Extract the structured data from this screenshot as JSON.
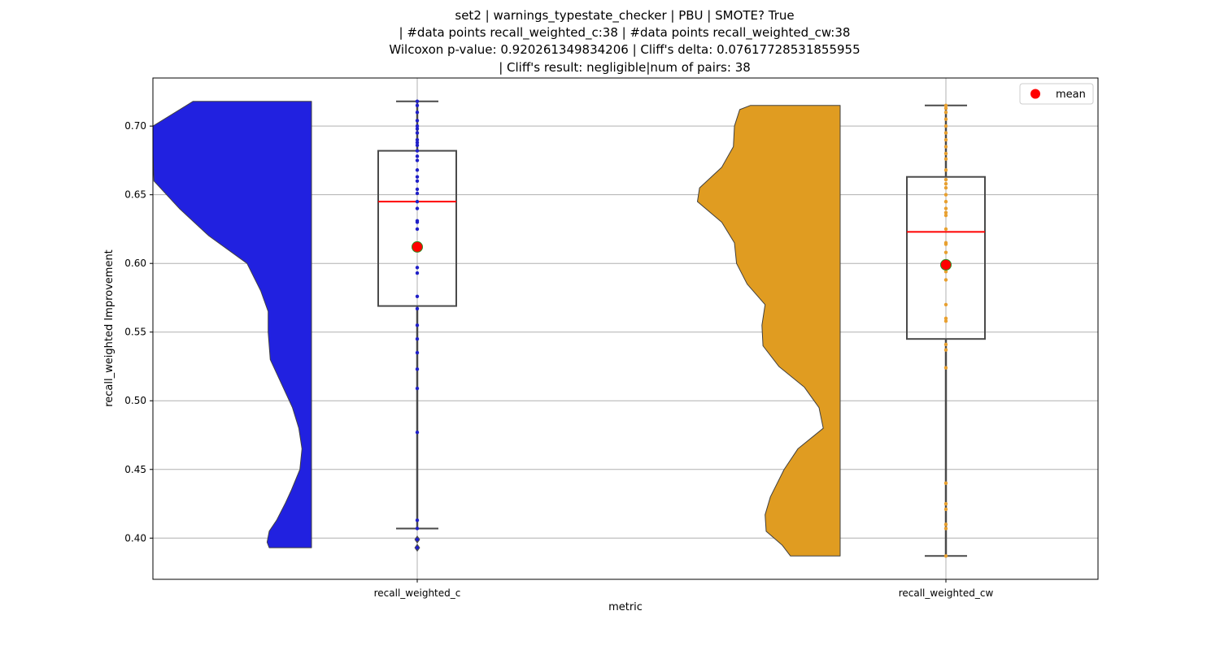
{
  "chart_data": {
    "type": "violin-box",
    "title_lines": [
      "set2 | warnings_typestate_checker | PBU | SMOTE? True",
      "| #data points recall_weighted_c:38 | #data points recall_weighted_cw:38",
      "Wilcoxon p-value: 0.920261349834206 | Cliff's delta: 0.07617728531855955",
      "| Cliff's result: negligible|num of pairs: 38"
    ],
    "xlabel": "metric",
    "ylabel": "recall_weighted Improvement",
    "categories": [
      "recall_weighted_c",
      "recall_weighted_cw"
    ],
    "ylim": [
      0.37,
      0.735
    ],
    "yticks": [
      0.4,
      0.45,
      0.5,
      0.55,
      0.6,
      0.65,
      0.7
    ],
    "ytick_labels": [
      "0.40",
      "0.45",
      "0.50",
      "0.55",
      "0.60",
      "0.65",
      "0.70"
    ],
    "grid": true,
    "legend": {
      "label": "mean",
      "position": "top-right"
    },
    "colors": {
      "violin_c": "#2121e0",
      "violin_cw": "#e09c21",
      "median": "#ff0000",
      "mean_fill": "#ff0000",
      "mean_edge": "#2e8b20",
      "box_edge": "#4a4a4a",
      "points_c": "#2020c8",
      "points_cw": "#e8a030",
      "grid": "#b0b0b0"
    },
    "series": [
      {
        "category": "recall_weighted_c",
        "n": 38,
        "box": {
          "q1": 0.569,
          "median": 0.645,
          "q3": 0.682,
          "whisker_low": 0.407,
          "whisker_high": 0.718
        },
        "mean": 0.612,
        "outliers": [
          0.399,
          0.393
        ],
        "points": [
          0.718,
          0.715,
          0.704,
          0.7,
          0.695,
          0.69,
          0.686,
          0.682,
          0.678,
          0.675,
          0.663,
          0.66,
          0.654,
          0.651,
          0.64,
          0.631,
          0.63,
          0.597,
          0.593,
          0.576,
          0.567,
          0.555,
          0.545,
          0.535,
          0.523,
          0.509,
          0.477,
          0.413,
          0.407,
          0.399,
          0.393,
          0.612,
          0.625,
          0.645,
          0.668,
          0.688,
          0.698,
          0.71
        ],
        "violin_profile": [
          [
            0.393,
            0.4
          ],
          [
            0.397,
            0.42
          ],
          [
            0.405,
            0.4
          ],
          [
            0.413,
            0.33
          ],
          [
            0.425,
            0.25
          ],
          [
            0.435,
            0.19
          ],
          [
            0.45,
            0.11
          ],
          [
            0.465,
            0.09
          ],
          [
            0.48,
            0.12
          ],
          [
            0.495,
            0.18
          ],
          [
            0.51,
            0.27
          ],
          [
            0.53,
            0.39
          ],
          [
            0.55,
            0.41
          ],
          [
            0.565,
            0.41
          ],
          [
            0.58,
            0.48
          ],
          [
            0.6,
            0.61
          ],
          [
            0.62,
            0.97
          ],
          [
            0.64,
            1.25
          ],
          [
            0.66,
            1.49
          ],
          [
            0.68,
            1.5
          ],
          [
            0.7,
            1.5
          ],
          [
            0.718,
            1.12
          ]
        ]
      },
      {
        "category": "recall_weighted_cw",
        "n": 38,
        "box": {
          "q1": 0.545,
          "median": 0.623,
          "q3": 0.663,
          "whisker_low": 0.387,
          "whisker_high": 0.715
        },
        "mean": 0.599,
        "outliers": [],
        "points": [
          0.715,
          0.713,
          0.705,
          0.7,
          0.695,
          0.69,
          0.68,
          0.676,
          0.661,
          0.658,
          0.655,
          0.64,
          0.637,
          0.635,
          0.614,
          0.608,
          0.6,
          0.594,
          0.588,
          0.57,
          0.558,
          0.541,
          0.537,
          0.524,
          0.44,
          0.425,
          0.421,
          0.41,
          0.407,
          0.387,
          0.615,
          0.625,
          0.645,
          0.65,
          0.668,
          0.685,
          0.71,
          0.56
        ],
        "violin_profile": [
          [
            0.387,
            0.47
          ],
          [
            0.395,
            0.55
          ],
          [
            0.405,
            0.7
          ],
          [
            0.417,
            0.71
          ],
          [
            0.43,
            0.66
          ],
          [
            0.45,
            0.53
          ],
          [
            0.465,
            0.4
          ],
          [
            0.48,
            0.16
          ],
          [
            0.495,
            0.2
          ],
          [
            0.51,
            0.34
          ],
          [
            0.525,
            0.58
          ],
          [
            0.54,
            0.73
          ],
          [
            0.555,
            0.74
          ],
          [
            0.57,
            0.71
          ],
          [
            0.585,
            0.88
          ],
          [
            0.6,
            0.98
          ],
          [
            0.615,
            1.0
          ],
          [
            0.63,
            1.12
          ],
          [
            0.645,
            1.35
          ],
          [
            0.655,
            1.33
          ],
          [
            0.67,
            1.12
          ],
          [
            0.685,
            1.01
          ],
          [
            0.7,
            1.0
          ],
          [
            0.712,
            0.95
          ],
          [
            0.715,
            0.85
          ]
        ]
      }
    ]
  }
}
